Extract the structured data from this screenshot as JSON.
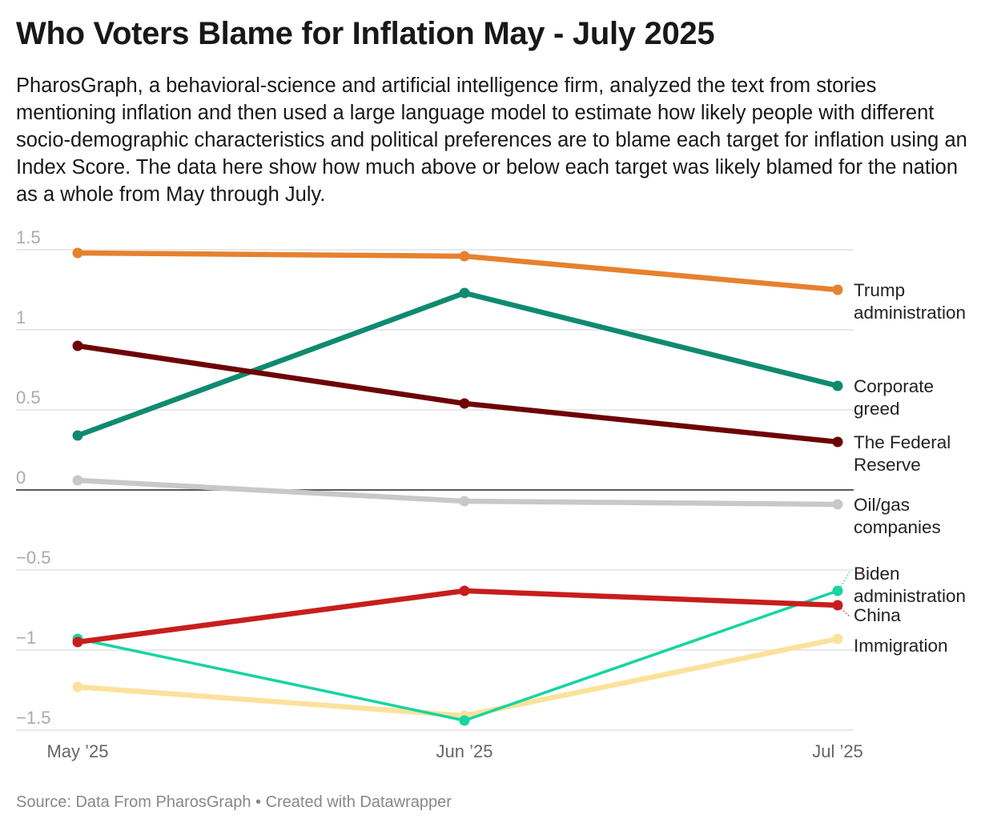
{
  "title": "Who Voters Blame for Inflation May - July 2025",
  "description": "PharosGraph, a behavioral-science and artificial intelligence firm, analyzed the text from stories mentioning inflation and then used a large language model to estimate how likely people with different socio-demographic characteristics and political preferences are to blame each target for inflation using an Index Score. The data here show how much above or below each target was likely blamed for the nation as a whole from May through July.",
  "source": "Source: Data From PharosGraph • Created with Datawrapper",
  "chart_data": {
    "type": "line",
    "x": [
      "May ’25",
      "Jun ’25",
      "Jul ’25"
    ],
    "ylim": [
      -1.5,
      1.5
    ],
    "yticks": [
      1.5,
      1,
      0.5,
      0,
      -0.5,
      -1,
      -1.5
    ],
    "ytick_labels": [
      "1.5",
      "1",
      "0.5",
      "0",
      "−0.5",
      "−1",
      "−1.5"
    ],
    "grid": true,
    "legend": "direct labels at right",
    "series": [
      {
        "name": "Trump administration",
        "label_lines": [
          "Trump",
          "administration"
        ],
        "color": "#e6812f",
        "values": [
          1.48,
          1.46,
          1.25
        ]
      },
      {
        "name": "Corporate greed",
        "label_lines": [
          "Corporate",
          "greed"
        ],
        "color": "#0f8a70",
        "values": [
          0.34,
          1.23,
          0.65
        ]
      },
      {
        "name": "The Federal Reserve",
        "label_lines": [
          "The Federal",
          "Reserve"
        ],
        "color": "#6e0304",
        "values": [
          0.9,
          0.54,
          0.3
        ]
      },
      {
        "name": "Oil/gas companies",
        "label_lines": [
          "Oil/gas",
          "companies"
        ],
        "color": "#c8c8c8",
        "values": [
          0.06,
          -0.07,
          -0.09
        ]
      },
      {
        "name": "Immigration",
        "label_lines": [
          "Immigration"
        ],
        "color": "#fbe29c",
        "values": [
          -1.23,
          -1.41,
          -0.93
        ]
      },
      {
        "name": "Biden administration",
        "label_lines": [
          "Biden",
          "administration"
        ],
        "color": "#17d4a0",
        "values": [
          -0.93,
          -1.44,
          -0.63
        ]
      },
      {
        "name": "China",
        "label_lines": [
          "China"
        ],
        "color": "#c71e1d",
        "values": [
          -0.95,
          -0.63,
          -0.72
        ]
      }
    ]
  }
}
